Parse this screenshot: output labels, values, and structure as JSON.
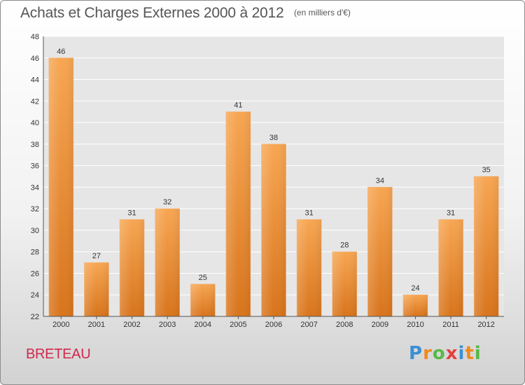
{
  "chart_data": {
    "type": "bar",
    "title": "Achats et Charges Externes 2000 à 2012",
    "subtitle": "(en milliers d'€)",
    "categories": [
      "2000",
      "2001",
      "2002",
      "2003",
      "2004",
      "2005",
      "2006",
      "2007",
      "2008",
      "2009",
      "2010",
      "2011",
      "2012"
    ],
    "values": [
      46,
      27,
      31,
      32,
      25,
      41,
      38,
      31,
      28,
      34,
      24,
      31,
      35
    ],
    "ylim": [
      22,
      48
    ],
    "yticks": [
      22,
      24,
      26,
      28,
      30,
      32,
      34,
      36,
      38,
      40,
      42,
      44,
      46,
      48
    ],
    "grid": true,
    "bar_color": "#e8862e",
    "bar_color_light": "#f7a95a"
  },
  "footer": {
    "city": "BRETEAU",
    "brand": "Proxiti",
    "city_color": "#d0284c"
  }
}
